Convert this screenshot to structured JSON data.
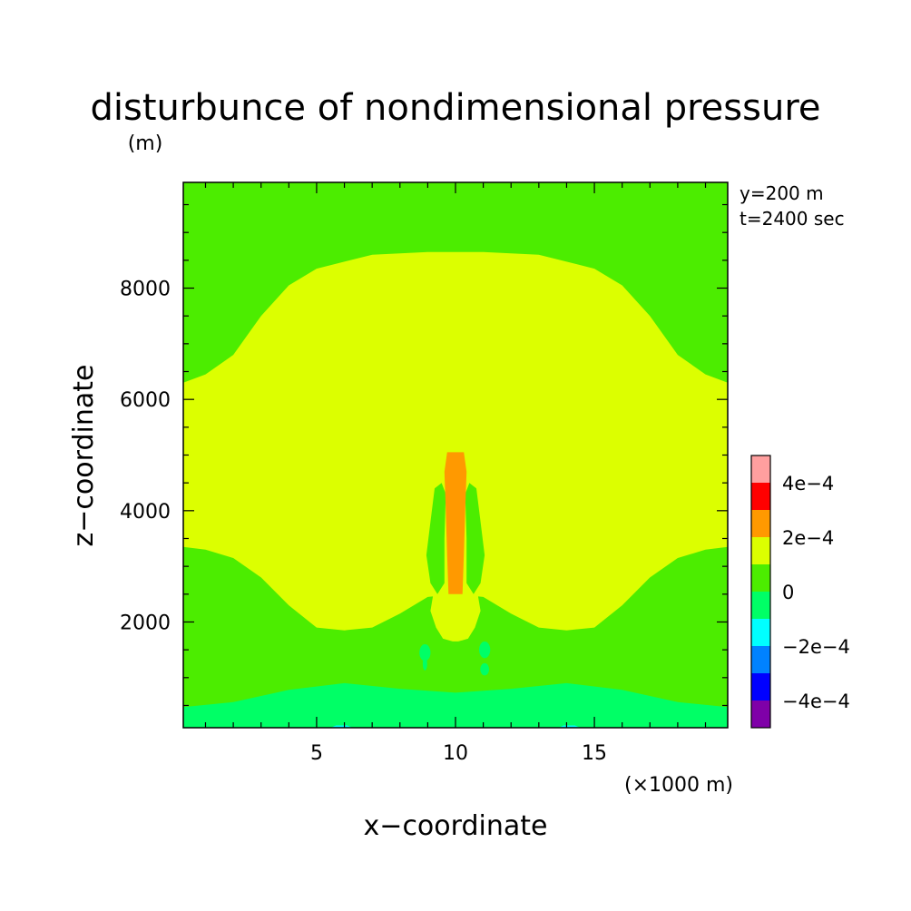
{
  "chart_data": {
    "type": "heatmap",
    "title": "disturbunce of nondimensional pressure",
    "ylabel": "z−coordinate",
    "yunit": "(m)",
    "xlabel": "x−coordinate",
    "xunit": "(×1000 m)",
    "info": [
      "y=200 m",
      "t=2400 sec"
    ],
    "xlim": [
      0.2,
      19.8
    ],
    "ylim": [
      100,
      9900
    ],
    "x_ticks": [
      5,
      10,
      15
    ],
    "x_tick_labels": [
      "5",
      "10",
      "15"
    ],
    "y_ticks": [
      2000,
      4000,
      6000,
      8000
    ],
    "y_tick_labels": [
      "2000",
      "4000",
      "6000",
      "8000"
    ],
    "colorbar": {
      "colors": [
        "#7f00a8",
        "#0000ff",
        "#0082ff",
        "#00ffff",
        "#00ff66",
        "#4ced00",
        "#dcff00",
        "#ff9900",
        "#ff0000",
        "#ff9f9f"
      ],
      "boundaries": [
        -0.0005,
        -0.0004,
        -0.0003,
        -0.0002,
        -0.0001,
        0,
        0.0001,
        0.0002,
        0.0003,
        0.0004,
        0.0005
      ],
      "labels": [
        {
          "value": -0.0004,
          "text": "−4e−4"
        },
        {
          "value": -0.0002,
          "text": "−2e−4"
        },
        {
          "value": 0,
          "text": "0"
        },
        {
          "value": 0.0002,
          "text": "2e−4"
        },
        {
          "value": 0.0004,
          "text": "4e−4"
        }
      ]
    },
    "regions": [
      {
        "name": "near-surface-negative",
        "value_range": [
          -0.0001,
          0
        ],
        "color": "#00ff66",
        "outline": [
          [
            0.2,
            100
          ],
          [
            0.2,
            470
          ],
          [
            2,
            560
          ],
          [
            4,
            780
          ],
          [
            6,
            900
          ],
          [
            8,
            800
          ],
          [
            10,
            730
          ],
          [
            12,
            800
          ],
          [
            14,
            900
          ],
          [
            16,
            780
          ],
          [
            18,
            560
          ],
          [
            19.8,
            470
          ],
          [
            19.8,
            100
          ]
        ]
      },
      {
        "name": "surface-pocket-left",
        "value_range": [
          -0.0002,
          -0.0001
        ],
        "color": "#00ffff",
        "outline": [
          [
            5.5,
            100
          ],
          [
            5.7,
            140
          ],
          [
            6.1,
            140
          ],
          [
            6.3,
            100
          ]
        ]
      },
      {
        "name": "surface-pocket-right",
        "value_range": [
          -0.0002,
          -0.0001
        ],
        "color": "#00ffff",
        "outline": [
          [
            13.7,
            100
          ],
          [
            13.9,
            140
          ],
          [
            14.3,
            140
          ],
          [
            14.5,
            100
          ]
        ]
      },
      {
        "name": "upper-positive-dome",
        "value_range": [
          0.0001,
          0.0002
        ],
        "color": "#dcff00",
        "outline": [
          [
            0.2,
            3350
          ],
          [
            1,
            3300
          ],
          [
            2,
            3150
          ],
          [
            3,
            2800
          ],
          [
            4,
            2300
          ],
          [
            5,
            1900
          ],
          [
            6,
            1850
          ],
          [
            7,
            1900
          ],
          [
            8,
            2150
          ],
          [
            9,
            2450
          ],
          [
            10,
            2500
          ],
          [
            11,
            2450
          ],
          [
            12,
            2150
          ],
          [
            13,
            1900
          ],
          [
            14,
            1850
          ],
          [
            15,
            1900
          ],
          [
            16,
            2300
          ],
          [
            17,
            2800
          ],
          [
            18,
            3150
          ],
          [
            19,
            3300
          ],
          [
            19.8,
            3350
          ],
          [
            19.8,
            6300
          ],
          [
            19,
            6450
          ],
          [
            18,
            6800
          ],
          [
            17,
            7500
          ],
          [
            16,
            8050
          ],
          [
            15,
            8350
          ],
          [
            13,
            8600
          ],
          [
            11,
            8650
          ],
          [
            9,
            8650
          ],
          [
            7,
            8600
          ],
          [
            5,
            8350
          ],
          [
            4,
            8050
          ],
          [
            3,
            7500
          ],
          [
            2,
            6800
          ],
          [
            1,
            6450
          ],
          [
            0.2,
            6300
          ]
        ]
      },
      {
        "name": "center-lower-lobe",
        "value_range": [
          0.0001,
          0.0002
        ],
        "color": "#dcff00",
        "outline": [
          [
            9.9,
            1650
          ],
          [
            9.55,
            1700
          ],
          [
            9.3,
            1900
          ],
          [
            9.1,
            2200
          ],
          [
            9.2,
            2500
          ],
          [
            9.6,
            2700
          ],
          [
            10.4,
            2700
          ],
          [
            10.8,
            2500
          ],
          [
            10.9,
            2200
          ],
          [
            10.7,
            1900
          ],
          [
            10.45,
            1700
          ],
          [
            10.1,
            1650
          ]
        ]
      },
      {
        "name": "green-tongue-left",
        "value_range": [
          0,
          0.0001
        ],
        "color": "#4ced00",
        "outline": [
          [
            9.5,
            4500
          ],
          [
            9.25,
            4400
          ],
          [
            9.1,
            3800
          ],
          [
            8.95,
            3200
          ],
          [
            9.1,
            2700
          ],
          [
            9.35,
            2500
          ],
          [
            9.6,
            2700
          ],
          [
            9.6,
            3500
          ],
          [
            9.65,
            4300
          ]
        ]
      },
      {
        "name": "green-tongue-right",
        "value_range": [
          0,
          0.0001
        ],
        "color": "#4ced00",
        "outline": [
          [
            10.5,
            4500
          ],
          [
            10.75,
            4400
          ],
          [
            10.9,
            3800
          ],
          [
            11.05,
            3200
          ],
          [
            10.9,
            2700
          ],
          [
            10.65,
            2500
          ],
          [
            10.4,
            2700
          ],
          [
            10.4,
            3500
          ],
          [
            10.35,
            4300
          ]
        ]
      },
      {
        "name": "central-max-column",
        "value_range": [
          0.0002,
          0.0003
        ],
        "color": "#ff9900",
        "outline": [
          [
            9.75,
            2500
          ],
          [
            9.7,
            3200
          ],
          [
            9.65,
            4000
          ],
          [
            9.6,
            4700
          ],
          [
            9.7,
            5050
          ],
          [
            10.3,
            5050
          ],
          [
            10.4,
            4700
          ],
          [
            10.35,
            4000
          ],
          [
            10.3,
            3200
          ],
          [
            10.25,
            2500
          ]
        ]
      },
      {
        "name": "dot-left-upper",
        "value_range": [
          -0.0001,
          0
        ],
        "color": "#00ff66",
        "ellipse": {
          "cx": 8.9,
          "cy": 1450,
          "rx": 0.2,
          "ry": 150
        }
      },
      {
        "name": "dot-left-lower",
        "value_range": [
          -0.0001,
          0
        ],
        "color": "#00ff66",
        "ellipse": {
          "cx": 8.9,
          "cy": 1250,
          "rx": 0.08,
          "ry": 120
        }
      },
      {
        "name": "dot-right-upper",
        "value_range": [
          -0.0001,
          0
        ],
        "color": "#00ff66",
        "ellipse": {
          "cx": 11.05,
          "cy": 1500,
          "rx": 0.2,
          "ry": 150
        }
      },
      {
        "name": "dot-right-lower",
        "value_range": [
          -0.0001,
          0
        ],
        "color": "#00ff66",
        "ellipse": {
          "cx": 11.05,
          "cy": 1150,
          "rx": 0.16,
          "ry": 110
        }
      }
    ]
  }
}
